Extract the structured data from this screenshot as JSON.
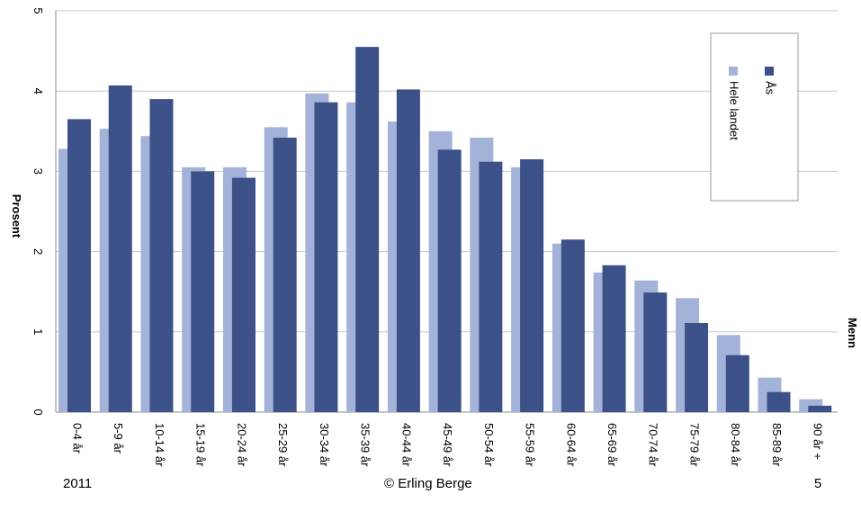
{
  "chart_data": {
    "type": "bar",
    "ylabel": "Prosent",
    "side_label": "Menn",
    "ylim": [
      0,
      5
    ],
    "yticks": [
      "0",
      "1",
      "2",
      "3",
      "4",
      "5"
    ],
    "grid": true,
    "legend_position": "top-right",
    "categories": [
      "0-4 år",
      "5-9 år",
      "10-14 år",
      "15-19 år",
      "20-24 år",
      "25-29 år",
      "30-34 år",
      "35-39 år",
      "40-44 år",
      "45-49 år",
      "50-54 år",
      "55-59 år",
      "60-64 år",
      "65-69 år",
      "70-74 år",
      "75-79 år",
      "80-84 år",
      "85-89 år",
      "90 år +"
    ],
    "series": [
      {
        "name": "Hele landet",
        "color": "#a3b2d8",
        "values": [
          3.28,
          3.53,
          3.44,
          3.05,
          3.05,
          3.55,
          3.97,
          3.86,
          3.62,
          3.5,
          3.42,
          3.05,
          2.1,
          1.74,
          1.64,
          1.42,
          0.96,
          0.43,
          0.16
        ]
      },
      {
        "name": "Ås",
        "color": "#3d5189",
        "values": [
          3.65,
          4.07,
          3.9,
          3.0,
          2.92,
          3.42,
          3.86,
          4.55,
          4.02,
          3.27,
          3.12,
          3.15,
          2.15,
          1.83,
          1.49,
          1.11,
          0.71,
          0.25,
          0.08
        ]
      }
    ]
  },
  "footer": {
    "left": "2011",
    "center": "© Erling Berge",
    "right": "5"
  }
}
